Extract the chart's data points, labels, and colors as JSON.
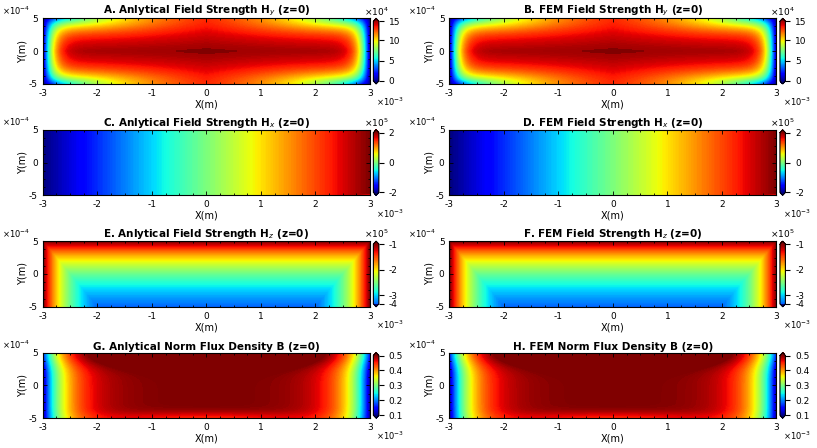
{
  "panels": [
    {
      "label": "A. Anlytical Field Strength H$_y$ (z=0)",
      "colormap": "jet",
      "vmin": 0,
      "vmax": 15,
      "cbticks": [
        0,
        5,
        10,
        15
      ],
      "cblabels": [
        "0",
        "5",
        "10",
        "15"
      ],
      "cbscale_exp": 4,
      "type": "Hy_analytical"
    },
    {
      "label": "B. FEM Field Strength H$_y$ (z=0)",
      "colormap": "jet",
      "vmin": 0,
      "vmax": 15,
      "cbticks": [
        0,
        5,
        10,
        15
      ],
      "cblabels": [
        "0",
        "5",
        "10",
        "15"
      ],
      "cbscale_exp": 4,
      "type": "Hy_fem"
    },
    {
      "label": "C. Anlytical Field Strength H$_x$ (z=0)",
      "colormap": "jet",
      "vmin": -2,
      "vmax": 2,
      "cbticks": [
        -2,
        0,
        2
      ],
      "cblabels": [
        "-2",
        "0",
        "2"
      ],
      "cbscale_exp": 5,
      "type": "Hx_analytical"
    },
    {
      "label": "D. FEM Field Strength H$_x$ (z=0)",
      "colormap": "jet",
      "vmin": -2,
      "vmax": 2,
      "cbticks": [
        -2,
        0,
        2
      ],
      "cblabels": [
        "-2",
        "0",
        "2"
      ],
      "cbscale_exp": 5,
      "type": "Hx_fem"
    },
    {
      "label": "E. Anlytical Field Strength H$_z$ (z=0)",
      "colormap": "jet",
      "vmin": -4,
      "vmax": -1,
      "cbticks": [
        -4,
        -3,
        -2,
        -1
      ],
      "cblabels": [
        "-4",
        "-3",
        "-2",
        "-1"
      ],
      "cbscale_exp": 5,
      "type": "Hz_analytical"
    },
    {
      "label": "F. FEM Field Strength H$_z$ (z=0)",
      "colormap": "jet",
      "vmin": -4,
      "vmax": -1,
      "cbticks": [
        -4,
        -3,
        -2,
        -1
      ],
      "cblabels": [
        "-4",
        "-3",
        "-2",
        "-1"
      ],
      "cbscale_exp": 5,
      "type": "Hz_fem"
    },
    {
      "label": "G. Anlytical Norm Flux Density B (z=0)",
      "colormap": "jet",
      "vmin": 0.1,
      "vmax": 0.5,
      "cbticks": [
        0.1,
        0.2,
        0.3,
        0.4,
        0.5
      ],
      "cblabels": [
        "0.1",
        "0.2",
        "0.3",
        "0.4",
        "0.5"
      ],
      "cbscale_exp": 0,
      "type": "B_analytical"
    },
    {
      "label": "H. FEM Norm Flux Density B (z=0)",
      "colormap": "jet",
      "vmin": 0.1,
      "vmax": 0.5,
      "cbticks": [
        0.1,
        0.2,
        0.3,
        0.4,
        0.5
      ],
      "cblabels": [
        "0.1",
        "0.2",
        "0.3",
        "0.4",
        "0.5"
      ],
      "cbscale_exp": 0,
      "type": "B_fem"
    }
  ],
  "xlim": [
    -0.003,
    0.003
  ],
  "ylim": [
    -0.0005,
    0.0005
  ],
  "xlabel": "X(m)",
  "ylabel": "Y(m)",
  "Nx": 300,
  "Ny": 80
}
